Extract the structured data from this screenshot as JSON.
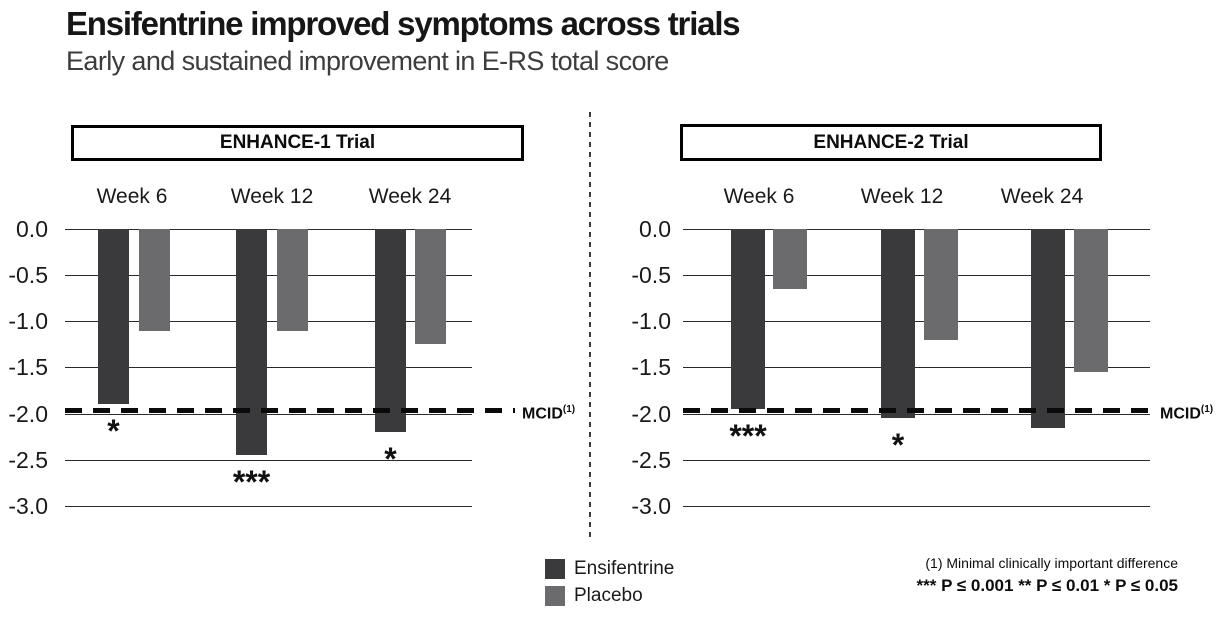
{
  "header": {
    "title": "Ensifentrine improved symptoms across trials",
    "subtitle": "Early and sustained improvement in E-RS total score"
  },
  "legend": {
    "items": [
      {
        "label": "Ensifentrine",
        "color": "#3a3a3c"
      },
      {
        "label": "Placebo",
        "color": "#6b6b6d"
      }
    ]
  },
  "mcid": {
    "label": "MCID",
    "superscript": "(1)"
  },
  "footnote": {
    "line1": "(1) Minimal clinically important difference",
    "line2": "***  P ≤ 0.001 ** P ≤ 0.01 * P ≤ 0.05"
  },
  "chart_data": [
    {
      "type": "bar",
      "title": "ENHANCE-1 Trial",
      "categories": [
        "Week 6",
        "Week 12",
        "Week 24"
      ],
      "series": [
        {
          "name": "Ensifentrine",
          "color": "#3a3a3c",
          "values": [
            -1.9,
            -2.45,
            -2.2
          ]
        },
        {
          "name": "Placebo",
          "color": "#6b6b6d",
          "values": [
            -1.1,
            -1.1,
            -1.25
          ]
        }
      ],
      "significance": [
        "*",
        "***",
        "*"
      ],
      "yticks": [
        0.0,
        -0.5,
        -1.0,
        -1.5,
        -2.0,
        -2.5,
        -3.0
      ],
      "ylim": [
        0,
        -3.0
      ],
      "mcid_value": -2.0,
      "grid": true,
      "legend_position": "bottom"
    },
    {
      "type": "bar",
      "title": "ENHANCE-2 Trial",
      "categories": [
        "Week 6",
        "Week 12",
        "Week 24"
      ],
      "series": [
        {
          "name": "Ensifentrine",
          "color": "#3a3a3c",
          "values": [
            -1.95,
            -2.05,
            -2.15
          ]
        },
        {
          "name": "Placebo",
          "color": "#6b6b6d",
          "values": [
            -0.65,
            -1.2,
            -1.55
          ]
        }
      ],
      "significance": [
        "***",
        "*",
        ""
      ],
      "yticks": [
        0.0,
        -0.5,
        -1.0,
        -1.5,
        -2.0,
        -2.5,
        -3.0
      ],
      "ylim": [
        0,
        -3.0
      ],
      "mcid_value": -2.0,
      "grid": true,
      "legend_position": "bottom"
    }
  ]
}
